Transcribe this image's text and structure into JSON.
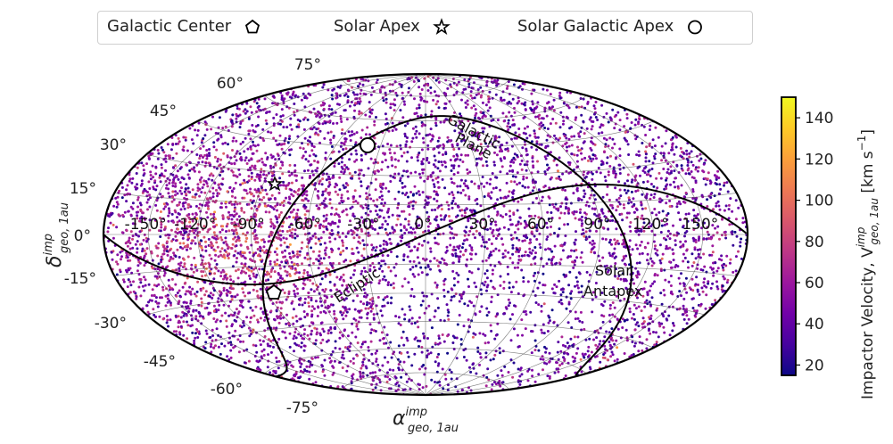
{
  "legend": {
    "items": [
      {
        "label": "Galactic Center",
        "marker": "pentagon-icon"
      },
      {
        "label": "Solar Apex",
        "marker": "star-icon"
      },
      {
        "label": "Solar Galactic Apex",
        "marker": "circle-icon"
      }
    ]
  },
  "axes": {
    "xlabel": "α",
    "xlabel_sup": "imp",
    "xlabel_sub": "geo, 1au",
    "ylabel": "δ",
    "ylabel_sup": "imp",
    "ylabel_sub": "geo, 1au"
  },
  "annotations": {
    "galactic_plane_1": "Galactic",
    "galactic_plane_2": "Plane",
    "ecliptic": "Ecliptic",
    "antapex_1": "Solar",
    "antapex_2": "Antapex"
  },
  "colorbar": {
    "label": "Impactor Velocity,  V",
    "label_sup": "imp",
    "label_sub": "geo, 1au",
    "label_units": " [km s",
    "label_units_sup": "−1",
    "label_units_end": "]",
    "ticks": [
      "20",
      "40",
      "60",
      "80",
      "100",
      "120",
      "140"
    ],
    "vmin": 15,
    "vmax": 150,
    "colormap": "plasma"
  },
  "colors": {
    "frame": "#000000",
    "grid": "#555555",
    "plasma_stops": [
      "#0d0887",
      "#46039f",
      "#7201a8",
      "#9c179e",
      "#bd3786",
      "#d8576b",
      "#ed7953",
      "#fb9f3a",
      "#fdca26",
      "#f0f921"
    ]
  },
  "chart_data": {
    "type": "scatter",
    "projection": "aitoff/hammer (all-sky)",
    "title": "",
    "xlabel": "α_geo,1au^imp (right ascension)",
    "ylabel": "δ_geo,1au^imp (declination)",
    "x_ticks": [
      "-150°",
      "-120°",
      "-90°",
      "-60°",
      "-30°",
      "0°",
      "30°",
      "60°",
      "90°",
      "120°",
      "150°"
    ],
    "y_ticks": [
      "-75°",
      "-60°",
      "-45°",
      "-30°",
      "-15°",
      "0°",
      "15°",
      "30°",
      "45°",
      "60°",
      "75°"
    ],
    "xlim": [
      -180,
      180
    ],
    "ylim": [
      -90,
      90
    ],
    "color_variable": "Impactor Velocity V_geo,1au^imp [km s^-1]",
    "color_range": [
      15,
      150
    ],
    "n_points_approx": 20000,
    "density_notes": "Higher density and higher velocities (orange, ~100–130 km/s) concentrated around RA -150° to -60°, Dec -30° to +20°; sparser, lower velocities (~30–60 km/s) in southern region RA 0° to 90°.",
    "markers": [
      {
        "name": "Galactic Center",
        "ra": -94,
        "dec": -29,
        "shape": "pentagon"
      },
      {
        "name": "Solar Apex",
        "ra": -89,
        "dec": 18,
        "shape": "star"
      },
      {
        "name": "Solar Galactic Apex",
        "ra": -42,
        "dec": 48,
        "shape": "circle"
      }
    ],
    "curves": [
      "Galactic Plane",
      "Ecliptic"
    ],
    "annotations": [
      "Galactic Plane",
      "Ecliptic",
      "Solar Antapex"
    ],
    "grid": true,
    "legend_position": "top"
  }
}
